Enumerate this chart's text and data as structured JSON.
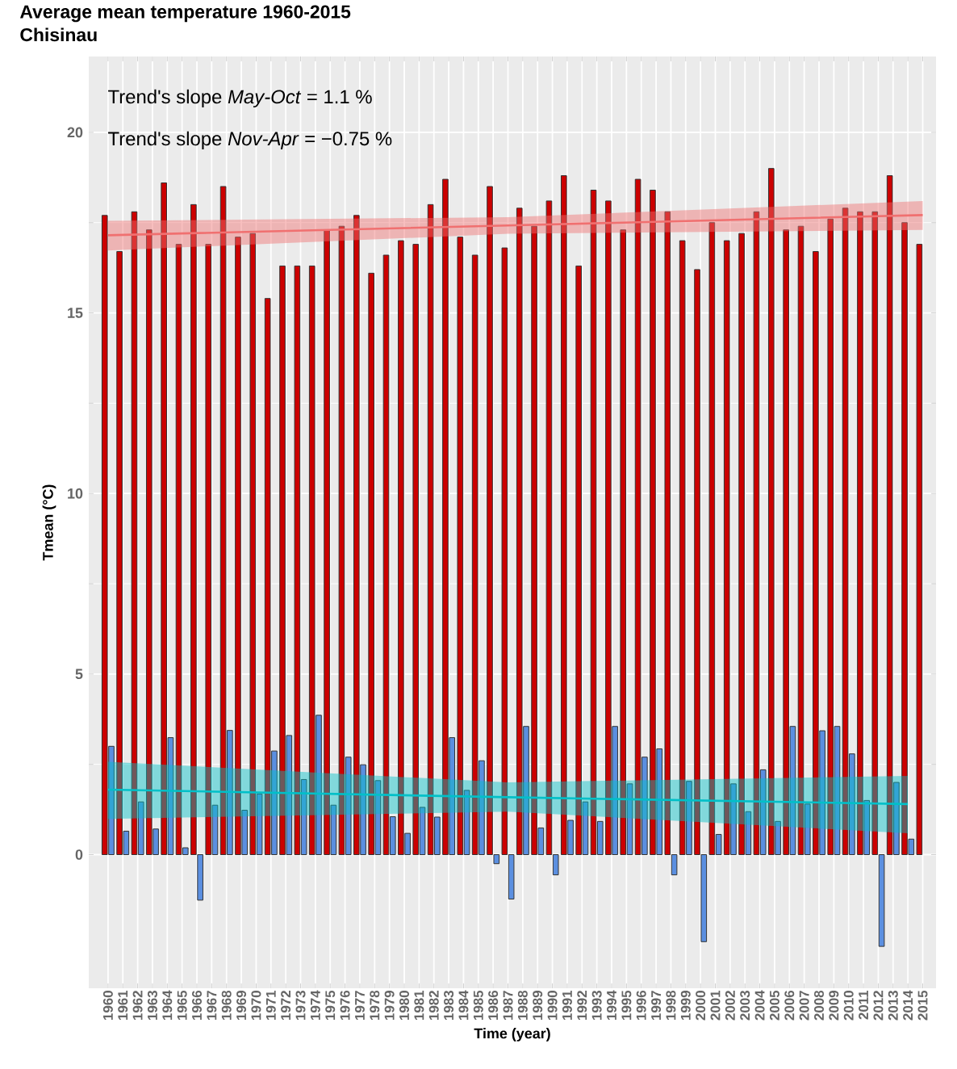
{
  "chart_data": {
    "type": "bar",
    "title": "Average mean temperature 1960-2015",
    "subtitle": "Chisinau",
    "xlabel": "Time (year)",
    "ylabel": "Tmean (°C)",
    "annotations": [
      "Trend's slope *May-Oct* = 1.1 %",
      "Trend's slope *Nov-Apr* = −0.75 %"
    ],
    "x": [
      1960,
      1961,
      1962,
      1963,
      1964,
      1965,
      1966,
      1967,
      1968,
      1969,
      1970,
      1971,
      1972,
      1973,
      1974,
      1975,
      1976,
      1977,
      1978,
      1979,
      1980,
      1981,
      1982,
      1983,
      1984,
      1985,
      1986,
      1987,
      1988,
      1989,
      1990,
      1991,
      1992,
      1993,
      1994,
      1995,
      1996,
      1997,
      1998,
      1999,
      2000,
      2001,
      2002,
      2003,
      2004,
      2005,
      2006,
      2007,
      2008,
      2009,
      2010,
      2011,
      2012,
      2013,
      2014,
      2015
    ],
    "xlim": [
      1958.7,
      2015.9
    ],
    "xticks": [
      1960,
      1961,
      1962,
      1963,
      1964,
      1965,
      1966,
      1967,
      1968,
      1969,
      1970,
      1971,
      1972,
      1973,
      1974,
      1975,
      1976,
      1977,
      1978,
      1979,
      1980,
      1981,
      1982,
      1983,
      1984,
      1985,
      1986,
      1987,
      1988,
      1989,
      1990,
      1991,
      1992,
      1993,
      1994,
      1995,
      1996,
      1997,
      1998,
      1999,
      2000,
      2001,
      2002,
      2003,
      2004,
      2005,
      2006,
      2007,
      2008,
      2009,
      2010,
      2011,
      2012,
      2013,
      2014,
      2015
    ],
    "series": [
      {
        "color": "#cc0000",
        "values": [
          17.7,
          16.7,
          17.8,
          17.3,
          18.6,
          16.9,
          18.0,
          16.9,
          18.5,
          17.1,
          17.2,
          15.4,
          16.3,
          16.3,
          16.3,
          17.3,
          17.4,
          17.7,
          16.1,
          16.6,
          17.0,
          16.9,
          18.0,
          18.7,
          17.1,
          16.6,
          18.5,
          16.8,
          17.9,
          17.4,
          18.1,
          18.8,
          16.3,
          18.4,
          18.1,
          17.3,
          18.7,
          18.4,
          17.8,
          17.0,
          16.2,
          17.5,
          17.0,
          17.2,
          17.8,
          19.0,
          17.3,
          17.4,
          16.7,
          17.6,
          17.9,
          17.8,
          17.8,
          18.8,
          17.5,
          16.9
        ]
      },
      {
        "color": "#5b8fe0",
        "values": [
          3.0,
          0.65,
          1.46,
          0.71,
          3.24,
          0.19,
          -1.26,
          1.37,
          3.44,
          1.23,
          1.68,
          2.87,
          3.3,
          2.08,
          3.86,
          1.37,
          2.7,
          2.49,
          2.05,
          1.05,
          0.59,
          1.31,
          1.04,
          3.24,
          1.78,
          2.6,
          -0.25,
          -1.23,
          3.55,
          0.74,
          -0.56,
          0.95,
          1.46,
          0.92,
          3.55,
          1.96,
          2.7,
          2.93,
          -0.56,
          2.03,
          -2.41,
          0.56,
          1.96,
          1.19,
          2.35,
          0.92,
          3.55,
          1.4,
          3.43,
          3.55,
          2.79,
          1.5,
          -2.54,
          2.0,
          0.43,
          null
        ]
      },
      {
        "type": "line",
        "color": "#f07070",
        "x": [
          1960,
          1987,
          2015
        ],
        "values": [
          17.15,
          17.42,
          17.71
        ],
        "lower": [
          16.73,
          17.19,
          17.3
        ],
        "upper": [
          17.55,
          17.65,
          18.1
        ]
      },
      {
        "type": "line",
        "color": "#00c0c8",
        "x": [
          1960,
          1987,
          2014
        ],
        "values": [
          1.8,
          1.59,
          1.4
        ],
        "lower": [
          0.99,
          1.19,
          0.59
        ],
        "upper": [
          2.57,
          2.0,
          2.18
        ]
      }
    ],
    "ylim": [
      -3.7,
      22.1
    ],
    "yticks": [
      0,
      5,
      10,
      15,
      20
    ],
    "grid": true
  }
}
